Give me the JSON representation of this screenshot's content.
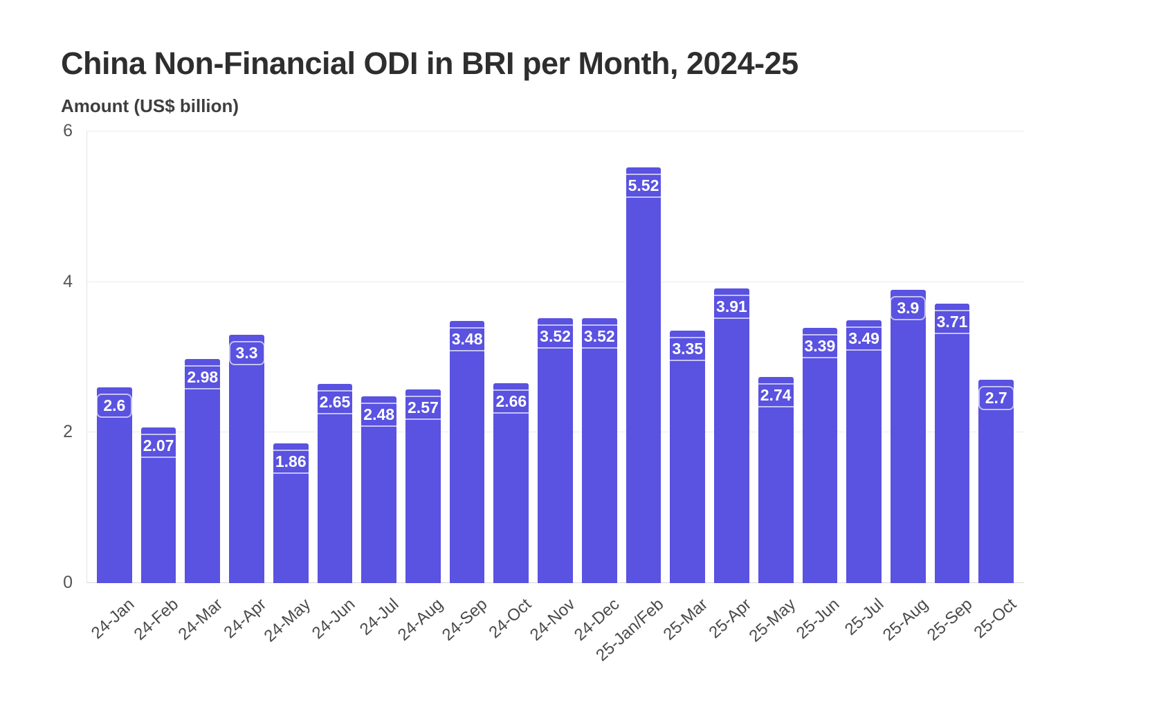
{
  "chart_data": {
    "type": "bar",
    "title": "China Non-Financial ODI in BRI per Month, 2024-25",
    "ylabel": "Amount (US$ billion)",
    "xlabel": "",
    "ylim": [
      0,
      6
    ],
    "yticks": [
      0,
      2,
      4,
      6
    ],
    "grid": true,
    "legend": "none",
    "bar_color": "#5a52e0",
    "categories": [
      "24-Jan",
      "24-Feb",
      "24-Mar",
      "24-Apr",
      "24-May",
      "24-Jun",
      "24-Jul",
      "24-Aug",
      "24-Sep",
      "24-Oct",
      "24-Nov",
      "24-Dec",
      "25-Jan/Feb",
      "25-Mar",
      "25-Apr",
      "25-May",
      "25-Jun",
      "25-Jul",
      "25-Aug",
      "25-Sep",
      "25-Oct"
    ],
    "values": [
      2.6,
      2.07,
      2.98,
      3.3,
      1.86,
      2.65,
      2.48,
      2.57,
      3.48,
      2.66,
      3.52,
      3.52,
      5.52,
      3.35,
      3.91,
      2.74,
      3.39,
      3.49,
      3.9,
      3.71,
      2.7
    ]
  }
}
